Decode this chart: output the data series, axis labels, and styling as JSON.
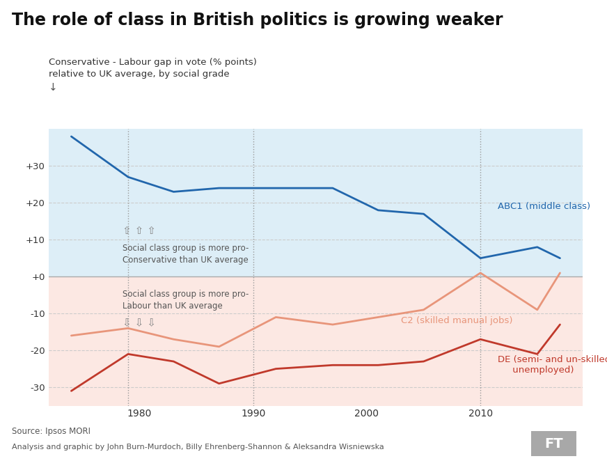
{
  "title": "The role of class in British politics is growing weaker",
  "subtitle": "Conservative - Labour gap in vote (% points)\nrelative to UK average, by social grade",
  "source": "Source: Ipsos MORI",
  "credit": "Analysis and graphic by John Burn-Murdoch, Billy Ehrenberg-Shannon & Aleksandra Wisniewska",
  "abc1_x": [
    1974,
    1979,
    1983,
    1987,
    1992,
    1997,
    2001,
    2005,
    2010,
    2015,
    2017
  ],
  "abc1_y": [
    38,
    27,
    23,
    24,
    24,
    24,
    18,
    17,
    5,
    8,
    5
  ],
  "c2_x": [
    1974,
    1979,
    1983,
    1987,
    1992,
    1997,
    2001,
    2005,
    2010,
    2015,
    2017
  ],
  "c2_y": [
    -16,
    -14,
    -17,
    -19,
    -11,
    -13,
    -11,
    -9,
    1,
    -9,
    1
  ],
  "de_x": [
    1974,
    1979,
    1983,
    1987,
    1992,
    1997,
    2001,
    2005,
    2010,
    2015,
    2017
  ],
  "de_y": [
    -31,
    -21,
    -23,
    -29,
    -25,
    -24,
    -24,
    -23,
    -17,
    -21,
    -13
  ],
  "abc1_color": "#2166ac",
  "c2_color": "#e8957a",
  "de_color": "#c0392b",
  "bg_above_color": "#ddeef7",
  "bg_below_color": "#fce8e3",
  "zero_line_color": "#aaaaaa",
  "grid_color": "#cccccc",
  "yticks": [
    -30,
    -20,
    -10,
    0,
    10,
    20,
    30
  ],
  "ytick_labels": [
    "-30",
    "-20",
    "-10",
    "+0",
    "+10",
    "+20",
    "+30"
  ],
  "xlim": [
    1972,
    2019
  ],
  "ylim": [
    -35,
    40
  ],
  "vline_years": [
    1979,
    1990,
    2010
  ],
  "vline_color": "#999999"
}
